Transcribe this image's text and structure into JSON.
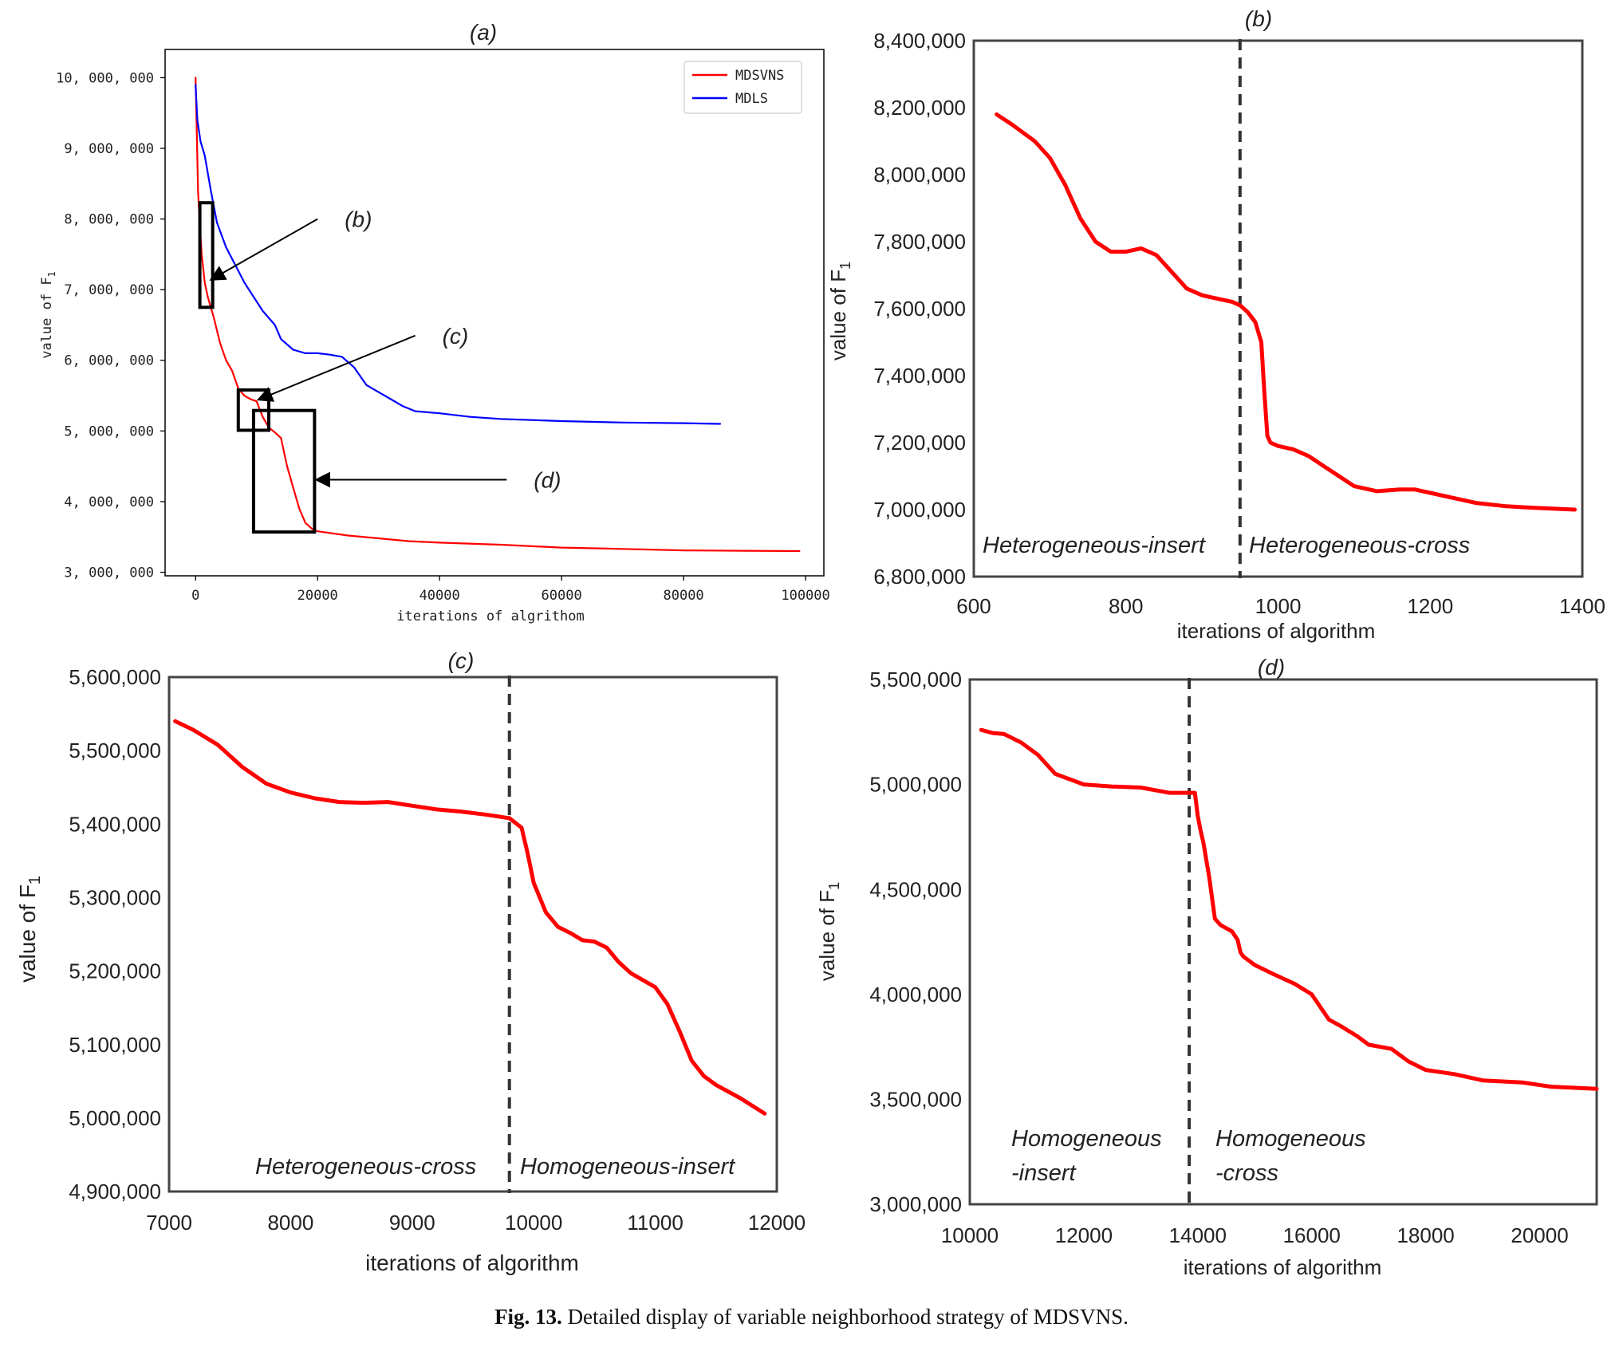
{
  "caption": {
    "label": "Fig. 13.",
    "text": "Detailed display of variable neighborhood strategy of MDSVNS."
  },
  "chart_data": [
    {
      "id": "a",
      "type": "line",
      "title": "(a)",
      "xlabel": "iterations of algrithom",
      "ylabel": "value of F",
      "ylabel_sub": "1",
      "xlim": [
        -5000,
        103000
      ],
      "ylim": [
        2950000,
        10400000
      ],
      "xticks": [
        0,
        20000,
        40000,
        60000,
        80000,
        100000
      ],
      "xtick_labels": [
        "0",
        "20000",
        "40000",
        "60000",
        "80000",
        "100000"
      ],
      "yticks": [
        3000000,
        4000000,
        5000000,
        6000000,
        7000000,
        8000000,
        9000000,
        10000000
      ],
      "ytick_labels": [
        "3, 000, 000",
        "4, 000, 000",
        "5, 000, 000",
        "6, 000, 000",
        "7, 000, 000",
        "8, 000, 000",
        "9, 000, 000",
        "10, 000, 000"
      ],
      "legend_position": "top-right",
      "series": [
        {
          "name": "MDSVNS",
          "color": "#ff0000",
          "x": [
            0,
            200,
            400,
            700,
            1000,
            1500,
            2000,
            3000,
            4000,
            5000,
            6000,
            7000,
            8000,
            9000,
            10000,
            11000,
            12000,
            13000,
            14000,
            15000,
            16000,
            17000,
            18000,
            19000,
            20000,
            25000,
            30000,
            35000,
            40000,
            50000,
            60000,
            70000,
            80000,
            90000,
            99000
          ],
          "y": [
            10000000,
            9200000,
            8400000,
            7900000,
            7500000,
            7100000,
            6900000,
            6600000,
            6250000,
            6000000,
            5850000,
            5600000,
            5500000,
            5450000,
            5420000,
            5200000,
            5050000,
            4980000,
            4900000,
            4500000,
            4200000,
            3900000,
            3700000,
            3620000,
            3580000,
            3520000,
            3480000,
            3440000,
            3420000,
            3390000,
            3350000,
            3330000,
            3310000,
            3305000,
            3300000
          ]
        },
        {
          "name": "MDLS",
          "color": "#0000ff",
          "x": [
            0,
            300,
            800,
            1500,
            2500,
            3500,
            5000,
            6500,
            8000,
            9500,
            11000,
            13000,
            14000,
            16000,
            18000,
            20000,
            22000,
            24000,
            26000,
            28000,
            30000,
            32000,
            34000,
            36000,
            40000,
            45000,
            50000,
            60000,
            70000,
            80000,
            86000
          ],
          "y": [
            9900000,
            9400000,
            9100000,
            8900000,
            8400000,
            7950000,
            7600000,
            7350000,
            7100000,
            6900000,
            6700000,
            6500000,
            6300000,
            6150000,
            6100000,
            6100000,
            6080000,
            6050000,
            5900000,
            5650000,
            5550000,
            5450000,
            5350000,
            5280000,
            5250000,
            5200000,
            5170000,
            5140000,
            5120000,
            5110000,
            5100000
          ]
        }
      ],
      "annotations": [
        {
          "label": "(b)",
          "box_x": [
            700,
            2800
          ],
          "box_y": [
            6750000,
            8230000
          ],
          "arrow_from": [
            20000,
            8000000
          ],
          "arrow_to": [
            2700,
            7150000
          ]
        },
        {
          "label": "(c)",
          "box_x": [
            7000,
            12000
          ],
          "box_y": [
            5010000,
            5580000
          ],
          "arrow_from": [
            36000,
            6350000
          ],
          "arrow_to": [
            10500,
            5450000
          ]
        },
        {
          "label": "(d)",
          "box_x": [
            9500,
            19500
          ],
          "box_y": [
            3570000,
            5290000
          ],
          "arrow_from": [
            51000,
            4310000
          ],
          "arrow_to": [
            20000,
            4310000
          ]
        }
      ]
    },
    {
      "id": "b",
      "type": "line",
      "title": "(b)",
      "xlabel": "iterations of algorithm",
      "ylabel": "value of F",
      "ylabel_sub": "1",
      "xlim": [
        600,
        1400
      ],
      "ylim": [
        6800000,
        8400000
      ],
      "xticks": [
        600,
        800,
        1000,
        1200,
        1400
      ],
      "xtick_labels": [
        "600",
        "800",
        "1000",
        "1200",
        "1400"
      ],
      "yticks": [
        6800000,
        7000000,
        7200000,
        7400000,
        7600000,
        7800000,
        8000000,
        8200000,
        8400000
      ],
      "ytick_labels": [
        "6,800,000",
        "7,000,000",
        "7,200,000",
        "7,400,000",
        "7,600,000",
        "7,800,000",
        "8,000,000",
        "8,200,000",
        "8,400,000"
      ],
      "divider_x": 950,
      "region_labels": [
        "Heterogeneous-insert",
        "Heterogeneous-cross"
      ],
      "series": [
        {
          "name": "MDSVNS",
          "color": "#ff0000",
          "x": [
            630,
            650,
            680,
            700,
            720,
            740,
            760,
            780,
            800,
            820,
            840,
            860,
            880,
            900,
            920,
            940,
            950,
            960,
            970,
            978,
            982,
            986,
            990,
            1000,
            1020,
            1040,
            1060,
            1080,
            1100,
            1130,
            1160,
            1180,
            1200,
            1230,
            1260,
            1300,
            1340,
            1390
          ],
          "y": [
            8180000,
            8150000,
            8100000,
            8050000,
            7970000,
            7870000,
            7800000,
            7770000,
            7770000,
            7780000,
            7760000,
            7710000,
            7660000,
            7640000,
            7630000,
            7620000,
            7610000,
            7590000,
            7560000,
            7500000,
            7350000,
            7220000,
            7200000,
            7190000,
            7180000,
            7160000,
            7130000,
            7100000,
            7070000,
            7055000,
            7060000,
            7060000,
            7050000,
            7035000,
            7020000,
            7010000,
            7005000,
            7000000
          ]
        }
      ]
    },
    {
      "id": "c",
      "type": "line",
      "title": "(c)",
      "xlabel": "iterations of algorithm",
      "ylabel": "value of F",
      "ylabel_sub": "1",
      "xlim": [
        7000,
        12000
      ],
      "ylim": [
        4900000,
        5600000
      ],
      "xticks": [
        7000,
        8000,
        9000,
        10000,
        11000,
        12000
      ],
      "xtick_labels": [
        "7000",
        "8000",
        "9000",
        "10000",
        "11000",
        "12000"
      ],
      "yticks": [
        4900000,
        5000000,
        5100000,
        5200000,
        5300000,
        5400000,
        5500000,
        5600000
      ],
      "ytick_labels": [
        "4,900,000",
        "5,000,000",
        "5,100,000",
        "5,200,000",
        "5,300,000",
        "5,400,000",
        "5,500,000",
        "5,600,000"
      ],
      "divider_x": 9800,
      "region_labels": [
        "Heterogeneous-cross",
        "Homogeneous-insert"
      ],
      "series": [
        {
          "name": "MDSVNS",
          "color": "#ff0000",
          "x": [
            7050,
            7200,
            7400,
            7600,
            7800,
            8000,
            8200,
            8400,
            8600,
            8800,
            9000,
            9200,
            9400,
            9600,
            9800,
            9900,
            9950,
            10000,
            10100,
            10200,
            10300,
            10400,
            10500,
            10600,
            10700,
            10800,
            11000,
            11100,
            11200,
            11300,
            11400,
            11500,
            11700,
            11900
          ],
          "y": [
            5540000,
            5528000,
            5508000,
            5478000,
            5455000,
            5443000,
            5435000,
            5430000,
            5429000,
            5430000,
            5425000,
            5420000,
            5417000,
            5413000,
            5408000,
            5395000,
            5360000,
            5320000,
            5280000,
            5260000,
            5252000,
            5242000,
            5240000,
            5232000,
            5212000,
            5197000,
            5178000,
            5155000,
            5118000,
            5078000,
            5057000,
            5045000,
            5027000,
            5006000
          ]
        }
      ]
    },
    {
      "id": "d",
      "type": "line",
      "title": "(d)",
      "xlabel": "iterations of algorithm",
      "ylabel": "value of F",
      "ylabel_sub": "1",
      "xlim": [
        10000,
        21000
      ],
      "ylim": [
        3000000,
        5500000
      ],
      "xticks": [
        10000,
        12000,
        14000,
        16000,
        18000,
        20000
      ],
      "xtick_labels": [
        "10000",
        "12000",
        "14000",
        "16000",
        "18000",
        "20000"
      ],
      "yticks": [
        3000000,
        3500000,
        4000000,
        4500000,
        5000000,
        5500000
      ],
      "ytick_labels": [
        "3,000,000",
        "3,500,000",
        "4,000,000",
        "4,500,000",
        "5,000,000",
        "5,500,000"
      ],
      "divider_x": 13850,
      "region_labels": [
        "Homogeneous -insert",
        "Homogeneous -cross"
      ],
      "series": [
        {
          "name": "MDSVNS",
          "color": "#ff0000",
          "x": [
            10200,
            10400,
            10600,
            10900,
            11200,
            11500,
            12000,
            12500,
            13000,
            13500,
            13800,
            13950,
            14000,
            14050,
            14100,
            14200,
            14300,
            14400,
            14600,
            14700,
            14750,
            14800,
            15000,
            15300,
            15700,
            16000,
            16300,
            16500,
            16800,
            17000,
            17400,
            17700,
            18000,
            18500,
            19000,
            19700,
            20200,
            21000
          ],
          "y": [
            5260000,
            5245000,
            5240000,
            5200000,
            5140000,
            5050000,
            5000000,
            4990000,
            4985000,
            4960000,
            4960000,
            4960000,
            4850000,
            4780000,
            4720000,
            4560000,
            4360000,
            4330000,
            4300000,
            4260000,
            4200000,
            4180000,
            4140000,
            4100000,
            4050000,
            4000000,
            3880000,
            3850000,
            3800000,
            3760000,
            3740000,
            3680000,
            3640000,
            3620000,
            3590000,
            3580000,
            3560000,
            3550000
          ]
        }
      ]
    }
  ]
}
